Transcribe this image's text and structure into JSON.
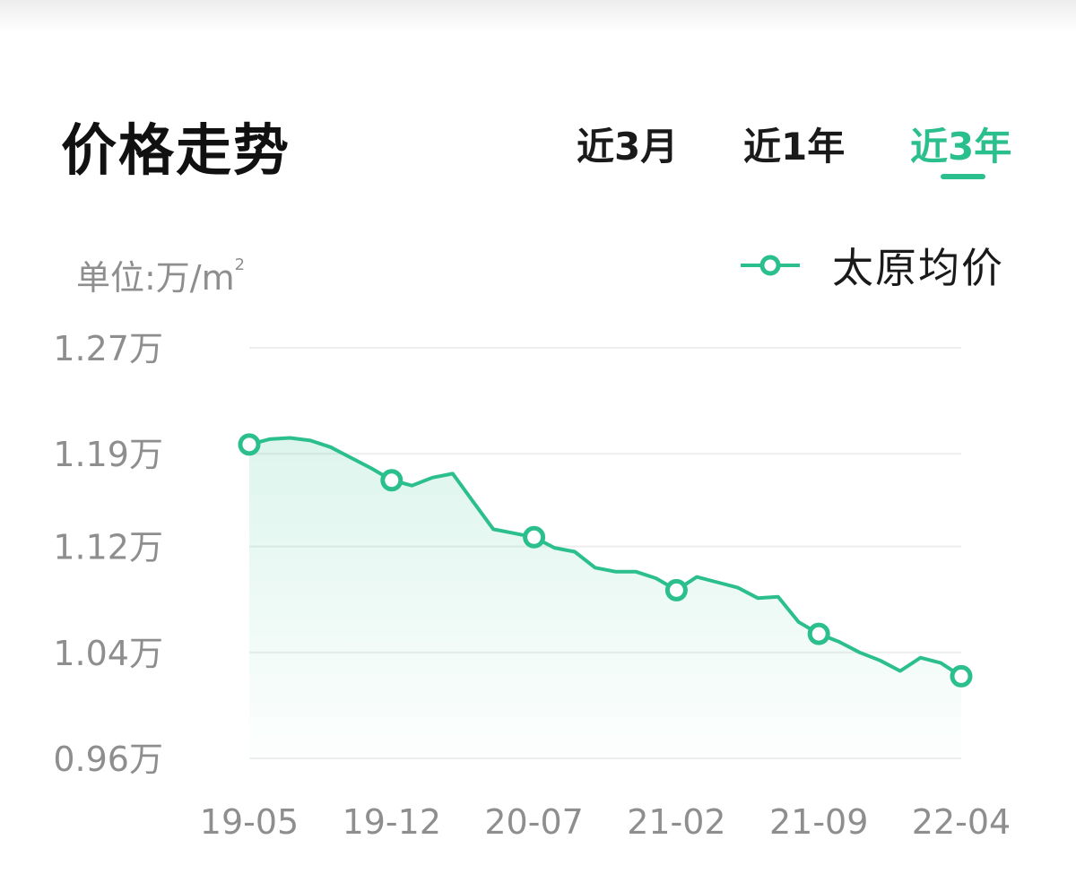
{
  "header": {
    "title": "价格走势",
    "tabs": [
      {
        "label": "近3月",
        "active": false
      },
      {
        "label": "近1年",
        "active": false
      },
      {
        "label": "近3年",
        "active": true
      }
    ]
  },
  "unit_label": {
    "text": "单位:万/m",
    "superscript": "2"
  },
  "colors": {
    "accent": "#2bbf8e",
    "axis_text": "#8e8e8e",
    "grid": "#eeeeee"
  },
  "chart_data": {
    "type": "area",
    "legend": {
      "label": "太原均价",
      "position": "top-right"
    },
    "y_ticks": [
      {
        "value": 1.27,
        "label": "1.27万"
      },
      {
        "value": 1.19,
        "label": "1.19万"
      },
      {
        "value": 1.12,
        "label": "1.12万"
      },
      {
        "value": 1.04,
        "label": "1.04万"
      },
      {
        "value": 0.96,
        "label": "0.96万"
      }
    ],
    "ylim": [
      0.96,
      1.27
    ],
    "x_ticks": [
      "19-05",
      "19-12",
      "20-07",
      "21-02",
      "21-09",
      "22-04"
    ],
    "grid": true,
    "series": [
      {
        "name": "太原均价",
        "x": [
          "19-05",
          "19-06",
          "19-07",
          "19-08",
          "19-09",
          "19-10",
          "19-11",
          "19-12",
          "20-01",
          "20-02",
          "20-03",
          "20-04",
          "20-05",
          "20-06",
          "20-07",
          "20-08",
          "20-09",
          "20-10",
          "20-11",
          "20-12",
          "21-01",
          "21-02",
          "21-03",
          "21-04",
          "21-05",
          "21-06",
          "21-07",
          "21-08",
          "21-09",
          "21-10",
          "21-11",
          "21-12",
          "22-01",
          "22-02",
          "22-03",
          "22-04"
        ],
        "values": [
          1.197,
          1.201,
          1.202,
          1.2,
          1.195,
          1.187,
          1.179,
          1.17,
          1.166,
          1.172,
          1.175,
          1.154,
          1.133,
          1.13,
          1.127,
          1.119,
          1.116,
          1.104,
          1.101,
          1.101,
          1.096,
          1.087,
          1.097,
          1.093,
          1.089,
          1.081,
          1.082,
          1.063,
          1.054,
          1.048,
          1.04,
          1.034,
          1.026,
          1.036,
          1.032,
          1.022
        ],
        "markers_at": [
          "19-05",
          "19-12",
          "20-07",
          "21-02",
          "21-09",
          "22-04"
        ]
      }
    ]
  }
}
